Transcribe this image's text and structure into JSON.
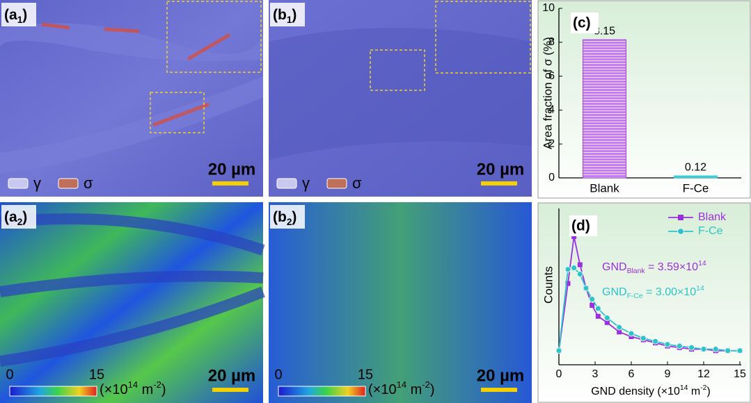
{
  "panels": [
    {
      "label": [
        "(a",
        "1",
        ")"
      ],
      "scale_bar": "20 µm",
      "legend": [
        "γ",
        "σ"
      ]
    },
    {
      "label": [
        "(b",
        "1",
        ")"
      ],
      "scale_bar": "20 µm",
      "legend": [
        "γ",
        "σ"
      ]
    },
    {
      "label": [
        "(a",
        "2",
        ")"
      ],
      "scale_bar": "20 µm",
      "colorbar": [
        "0",
        "15"
      ],
      "colorbar_unit": [
        "(×10",
        "14",
        " m",
        "-2",
        ")"
      ]
    },
    {
      "label": [
        "(b",
        "2",
        ")"
      ],
      "scale_bar": "20 µm",
      "colorbar": [
        "0",
        "15"
      ],
      "colorbar_unit": [
        "(×10",
        "14",
        " m",
        "-2",
        ")"
      ]
    }
  ],
  "chart_data": [
    {
      "type": "bar",
      "label": "(c)",
      "y_label": "Area fraction of σ (%)",
      "categories": [
        "Blank",
        "F-Ce"
      ],
      "values": [
        8.15,
        0.12
      ],
      "colors": [
        "#c77df2",
        "#3ccfd6"
      ],
      "ylim": [
        0,
        10
      ],
      "yticks": [
        0,
        2,
        4,
        6,
        8,
        10
      ]
    },
    {
      "type": "line",
      "label": "(d)",
      "y_label": "Counts",
      "x_label": [
        "GND density (×10",
        "14",
        " m",
        "-2",
        ")"
      ],
      "x": [
        0,
        0.75,
        1.25,
        1.75,
        2.25,
        2.75,
        3.25,
        4,
        5,
        6,
        7,
        8,
        9,
        10,
        11,
        12,
        13,
        14,
        15
      ],
      "xlim": [
        0,
        15
      ],
      "xticks": [
        0,
        3,
        6,
        9,
        12,
        15
      ],
      "ylim": [
        0,
        100
      ],
      "series": [
        {
          "name": "Blank",
          "color": "#9b2fe0",
          "marker": "square",
          "values": [
            9,
            52,
            82,
            64,
            49,
            38,
            31,
            27,
            21,
            18,
            16,
            14,
            12,
            11,
            10,
            10,
            9,
            9,
            9
          ]
        },
        {
          "name": "F-Ce",
          "color": "#2cc4c9",
          "marker": "circle",
          "values": [
            9,
            61,
            62,
            58,
            49,
            42,
            36,
            30,
            24,
            20,
            17,
            15,
            13,
            12,
            11,
            10,
            10,
            9,
            9
          ]
        }
      ],
      "annotations": [
        [
          "GND",
          "Blank",
          " = 3.59×10",
          "14"
        ],
        [
          "GND",
          "F-Ce",
          " = 3.00×10",
          "14"
        ]
      ]
    }
  ]
}
